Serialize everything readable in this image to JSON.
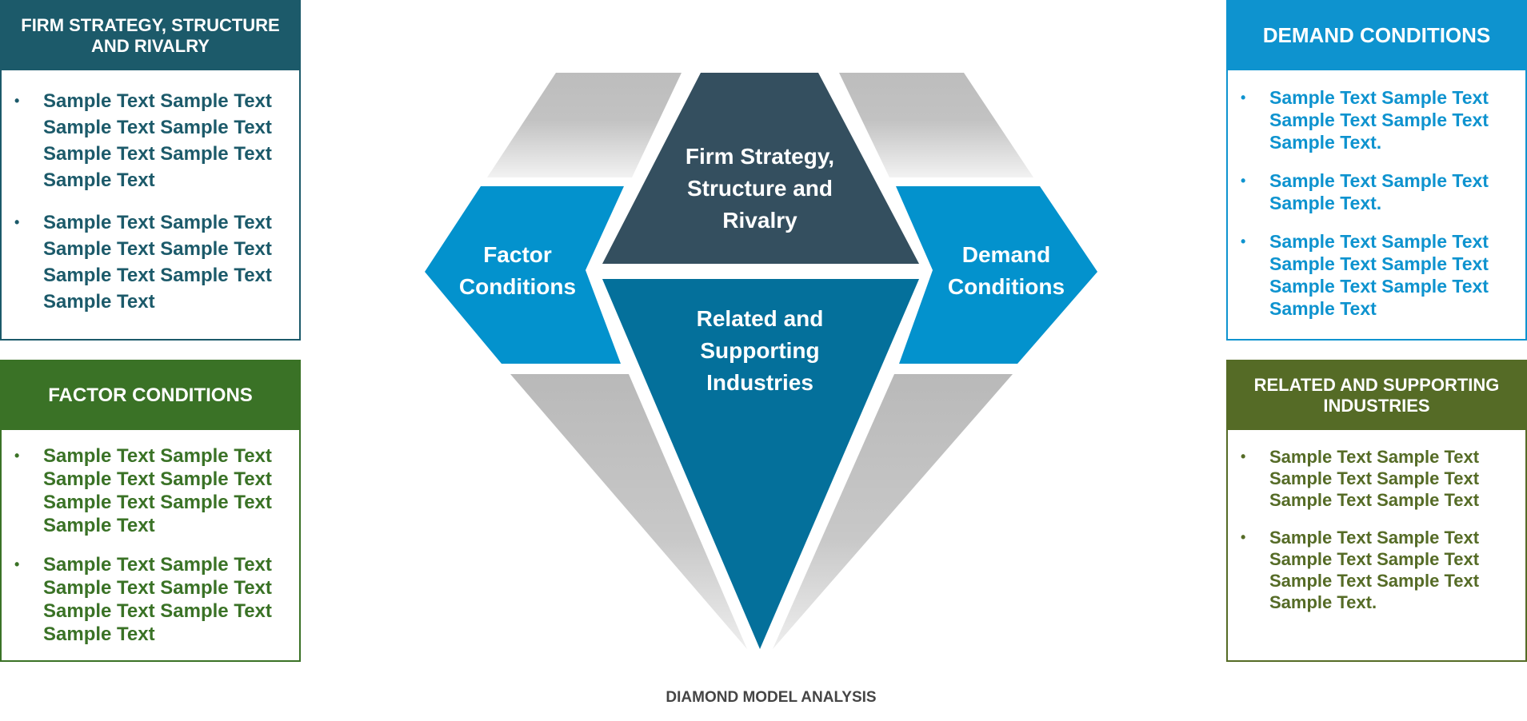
{
  "caption": "DIAMOND MODEL ANALYSIS",
  "colors": {
    "firm": "#1c5a6a",
    "factor": "#3a7226",
    "demand": "#0e93cf",
    "related": "#556b26",
    "diamond_top": "#344f5f",
    "diamond_side": "#0392cd",
    "diamond_bottom": "#04709b",
    "facet_gray": "#bdbdbd"
  },
  "diamond": {
    "firm": "Firm Strategy, Structure and Rivalry",
    "factor": "Factor Conditions",
    "demand": "Demand Conditions",
    "related": "Related and Supporting Industries"
  },
  "panels": {
    "firm": {
      "title": "FIRM STRATEGY, STRUCTURE AND RIVALRY",
      "items": [
        "Sample Text Sample Text Sample Text Sample Text Sample Text Sample Text Sample Text",
        "Sample Text Sample Text Sample Text Sample Text Sample Text Sample Text Sample Text"
      ]
    },
    "factor": {
      "title": "FACTOR CONDITIONS",
      "items": [
        "Sample Text Sample Text Sample Text Sample Text Sample Text Sample Text Sample Text",
        "Sample Text Sample Text Sample Text Sample Text Sample Text Sample Text Sample Text"
      ]
    },
    "demand": {
      "title": "DEMAND CONDITIONS",
      "items": [
        "Sample Text Sample Text Sample Text Sample Text Sample Text.",
        "Sample Text Sample Text Sample Text.",
        "Sample Text Sample Text Sample Text Sample Text Sample Text Sample Text Sample Text"
      ]
    },
    "related": {
      "title": "RELATED AND SUPPORTING INDUSTRIES",
      "items": [
        "Sample Text Sample Text Sample Text Sample Text Sample Text Sample Text",
        "Sample Text Sample Text Sample Text Sample Text Sample Text Sample Text Sample Text."
      ]
    }
  }
}
